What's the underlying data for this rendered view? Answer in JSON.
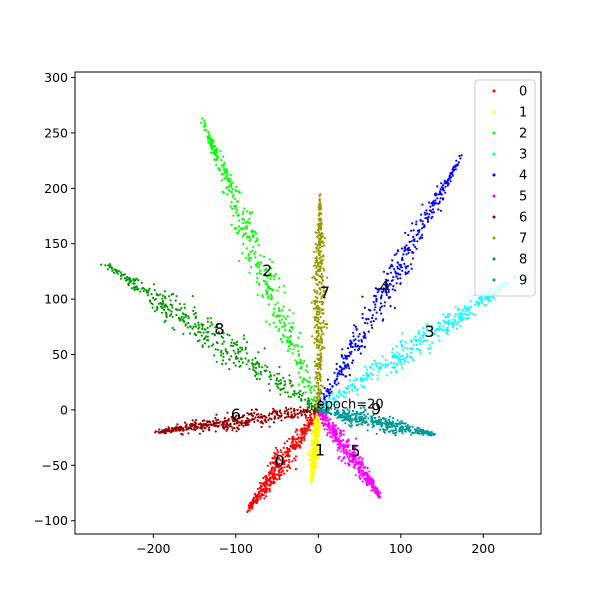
{
  "chart_data": {
    "type": "scatter",
    "title": "",
    "xlabel": "",
    "ylabel": "",
    "xlim": [
      -295,
      270
    ],
    "ylim": [
      -112,
      305
    ],
    "xticks": [
      -200,
      -100,
      0,
      100,
      200
    ],
    "yticks": [
      -100,
      -50,
      0,
      50,
      100,
      150,
      200,
      250,
      300
    ],
    "grid": false,
    "legend_position": "top-right",
    "annotation": "epoch=20",
    "series": [
      {
        "name": "0",
        "color": "#ff0000",
        "label_at": [
          -47,
          -47
        ],
        "tip": [
          -85,
          -90
        ],
        "width": 8
      },
      {
        "name": "1",
        "color": "#ffff00",
        "label_at": [
          2,
          -37
        ],
        "tip": [
          -8,
          -65
        ],
        "width": 4
      },
      {
        "name": "2",
        "color": "#00ff00",
        "label_at": [
          -62,
          125
        ],
        "tip": [
          -140,
          260
        ],
        "width": 11
      },
      {
        "name": "3",
        "color": "#00ffff",
        "label_at": [
          135,
          70
        ],
        "tip": [
          240,
          120
        ],
        "width": 9
      },
      {
        "name": "4",
        "color": "#0000ff",
        "label_at": [
          80,
          110
        ],
        "tip": [
          170,
          225
        ],
        "width": 10
      },
      {
        "name": "5",
        "color": "#ff00ff",
        "label_at": [
          45,
          -38
        ],
        "tip": [
          75,
          -78
        ],
        "width": 7
      },
      {
        "name": "6",
        "color": "#990000",
        "label_at": [
          -100,
          -5
        ],
        "tip": [
          -195,
          -20
        ],
        "width": 6
      },
      {
        "name": "7",
        "color": "#999900",
        "label_at": [
          8,
          105
        ],
        "tip": [
          2,
          190
        ],
        "width": 6
      },
      {
        "name": "8",
        "color": "#009900",
        "label_at": [
          -120,
          72
        ],
        "tip": [
          -255,
          130
        ],
        "width": 12
      },
      {
        "name": "9",
        "color": "#009999",
        "label_at": [
          70,
          0
        ],
        "tip": [
          140,
          -22
        ],
        "width": 6
      }
    ]
  }
}
